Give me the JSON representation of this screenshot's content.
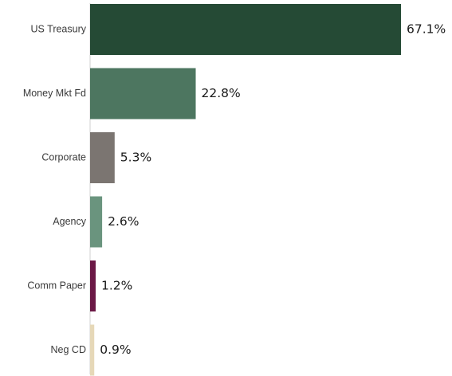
{
  "chart_data": {
    "type": "bar",
    "orientation": "horizontal",
    "categories": [
      "US Treasury",
      "Money Mkt Fd",
      "Corporate",
      "Agency",
      "Comm Paper",
      "Neg CD"
    ],
    "values": [
      67.1,
      22.8,
      5.3,
      2.6,
      1.2,
      0.9
    ],
    "value_labels": [
      "67.1%",
      "22.8%",
      "5.3%",
      "2.6%",
      "1.2%",
      "0.9%"
    ],
    "colors": [
      "#254a35",
      "#4d7660",
      "#7b7571",
      "#6a947e",
      "#6b1845",
      "#e6d8b8"
    ],
    "title": "",
    "xlabel": "",
    "ylabel": "",
    "xlim": [
      0,
      67.1
    ],
    "grid": false,
    "legend": "none"
  }
}
